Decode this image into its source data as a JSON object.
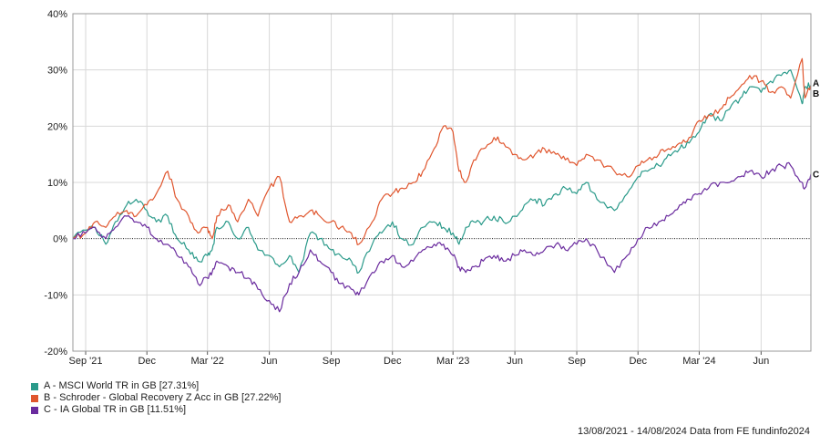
{
  "chart_data": {
    "type": "line",
    "title": "",
    "xlabel": "",
    "ylabel": "",
    "ylim": [
      -20,
      40
    ],
    "y_ticks": [
      "40%",
      "30%",
      "20%",
      "10%",
      "0%",
      "-10%",
      "-20%"
    ],
    "y_tick_values": [
      40,
      30,
      20,
      10,
      0,
      -10,
      -20
    ],
    "x_range": [
      "2021-08-13",
      "2024-08-14"
    ],
    "x_ticks": [
      {
        "label": "Sep '21",
        "date": "2021-09-01"
      },
      {
        "label": "Dec",
        "date": "2021-12-01"
      },
      {
        "label": "Mar '22",
        "date": "2022-03-01"
      },
      {
        "label": "Jun",
        "date": "2022-06-01"
      },
      {
        "label": "Sep",
        "date": "2022-09-01"
      },
      {
        "label": "Dec",
        "date": "2022-12-01"
      },
      {
        "label": "Mar '23",
        "date": "2023-03-01"
      },
      {
        "label": "Jun",
        "date": "2023-06-01"
      },
      {
        "label": "Sep",
        "date": "2023-09-01"
      },
      {
        "label": "Dec",
        "date": "2023-12-01"
      },
      {
        "label": "Mar '24",
        "date": "2024-03-01"
      },
      {
        "label": "Jun",
        "date": "2024-06-01"
      }
    ],
    "grid": true,
    "zero_line": "dotted",
    "legend_position": "bottom-left",
    "x": [
      "2021-08-13",
      "2021-09-01",
      "2021-09-15",
      "2021-10-01",
      "2021-10-15",
      "2021-11-01",
      "2021-11-15",
      "2021-12-01",
      "2021-12-15",
      "2022-01-01",
      "2022-01-15",
      "2022-02-01",
      "2022-02-15",
      "2022-03-01",
      "2022-03-08",
      "2022-03-15",
      "2022-04-01",
      "2022-04-15",
      "2022-05-01",
      "2022-05-15",
      "2022-06-01",
      "2022-06-16",
      "2022-07-01",
      "2022-07-15",
      "2022-08-01",
      "2022-08-15",
      "2022-09-01",
      "2022-09-15",
      "2022-10-01",
      "2022-10-12",
      "2022-11-01",
      "2022-11-15",
      "2022-12-01",
      "2022-12-15",
      "2023-01-01",
      "2023-01-15",
      "2023-02-01",
      "2023-02-15",
      "2023-03-01",
      "2023-03-10",
      "2023-03-20",
      "2023-04-01",
      "2023-04-15",
      "2023-05-01",
      "2023-05-15",
      "2023-06-01",
      "2023-06-15",
      "2023-07-01",
      "2023-07-15",
      "2023-08-01",
      "2023-08-15",
      "2023-09-01",
      "2023-09-15",
      "2023-10-01",
      "2023-10-27",
      "2023-11-15",
      "2023-12-01",
      "2023-12-15",
      "2024-01-01",
      "2024-01-15",
      "2024-02-01",
      "2024-02-15",
      "2024-03-01",
      "2024-03-15",
      "2024-04-01",
      "2024-04-15",
      "2024-05-01",
      "2024-05-15",
      "2024-06-01",
      "2024-06-15",
      "2024-07-01",
      "2024-07-15",
      "2024-08-01",
      "2024-08-05",
      "2024-08-14"
    ],
    "series": [
      {
        "name": "A - MSCI World TR in GB [27.31%]",
        "label": "A",
        "color": "#2a9a8a",
        "values": [
          0,
          1.5,
          2,
          -1,
          3,
          6,
          7,
          5,
          3,
          4,
          0,
          -2,
          -4,
          -3,
          -2,
          2,
          3,
          0,
          2,
          -2,
          -3,
          -5,
          -3,
          -6,
          1,
          0,
          -2,
          -3,
          -4,
          -6,
          -1,
          1,
          3,
          0,
          -1,
          2,
          3,
          2,
          1,
          -1,
          2,
          3,
          3,
          4,
          3,
          4,
          6,
          7,
          6,
          8,
          9,
          8,
          10,
          7,
          5,
          8,
          11,
          12,
          13,
          15,
          16,
          17,
          19,
          22,
          21,
          23,
          25,
          27,
          26,
          28,
          29,
          30,
          24,
          27,
          27.31
        ]
      },
      {
        "name": "B - Schroder - Global Recovery Z Acc in GB [27.22%]",
        "label": "B",
        "color": "#e0562e",
        "values": [
          0,
          1,
          3,
          2,
          4,
          5,
          4,
          6,
          8,
          12,
          7,
          4,
          1,
          2,
          0,
          4,
          6,
          3,
          7,
          4,
          9,
          11,
          3,
          4,
          5,
          4,
          3,
          2,
          1,
          -1,
          3,
          7,
          8,
          9,
          10,
          12,
          16,
          20,
          19,
          12,
          10,
          14,
          16,
          18,
          17,
          15,
          14,
          15,
          16,
          15,
          14,
          13,
          15,
          14,
          12,
          11,
          13,
          14,
          15,
          16,
          17,
          18,
          21,
          22,
          23,
          25,
          27,
          29,
          28,
          26,
          27,
          25,
          32,
          25,
          27.22
        ]
      },
      {
        "name": "C - IA Global TR in GB [11.51%]",
        "label": "C",
        "color": "#6a2b9e",
        "values": [
          0,
          1,
          2,
          0,
          2,
          4,
          3,
          2,
          0,
          -1,
          -3,
          -5,
          -8,
          -7,
          -6,
          -4,
          -5,
          -6,
          -7,
          -9,
          -11,
          -13,
          -8,
          -6,
          -2,
          -4,
          -6,
          -8,
          -9,
          -10,
          -6,
          -4,
          -3,
          -5,
          -4,
          -2,
          -1,
          -1,
          -3,
          -5,
          -6,
          -5,
          -4,
          -3,
          -4,
          -3,
          -2,
          -3,
          -2,
          -1,
          -2,
          -1,
          0,
          -2,
          -6,
          -3,
          0,
          2,
          3,
          4,
          6,
          7,
          8,
          9,
          10,
          10,
          11,
          12,
          11,
          12,
          13,
          13,
          10,
          9,
          11.51
        ]
      }
    ]
  },
  "footer": "13/08/2021 - 14/08/2024 Data from FE fundinfo2024"
}
